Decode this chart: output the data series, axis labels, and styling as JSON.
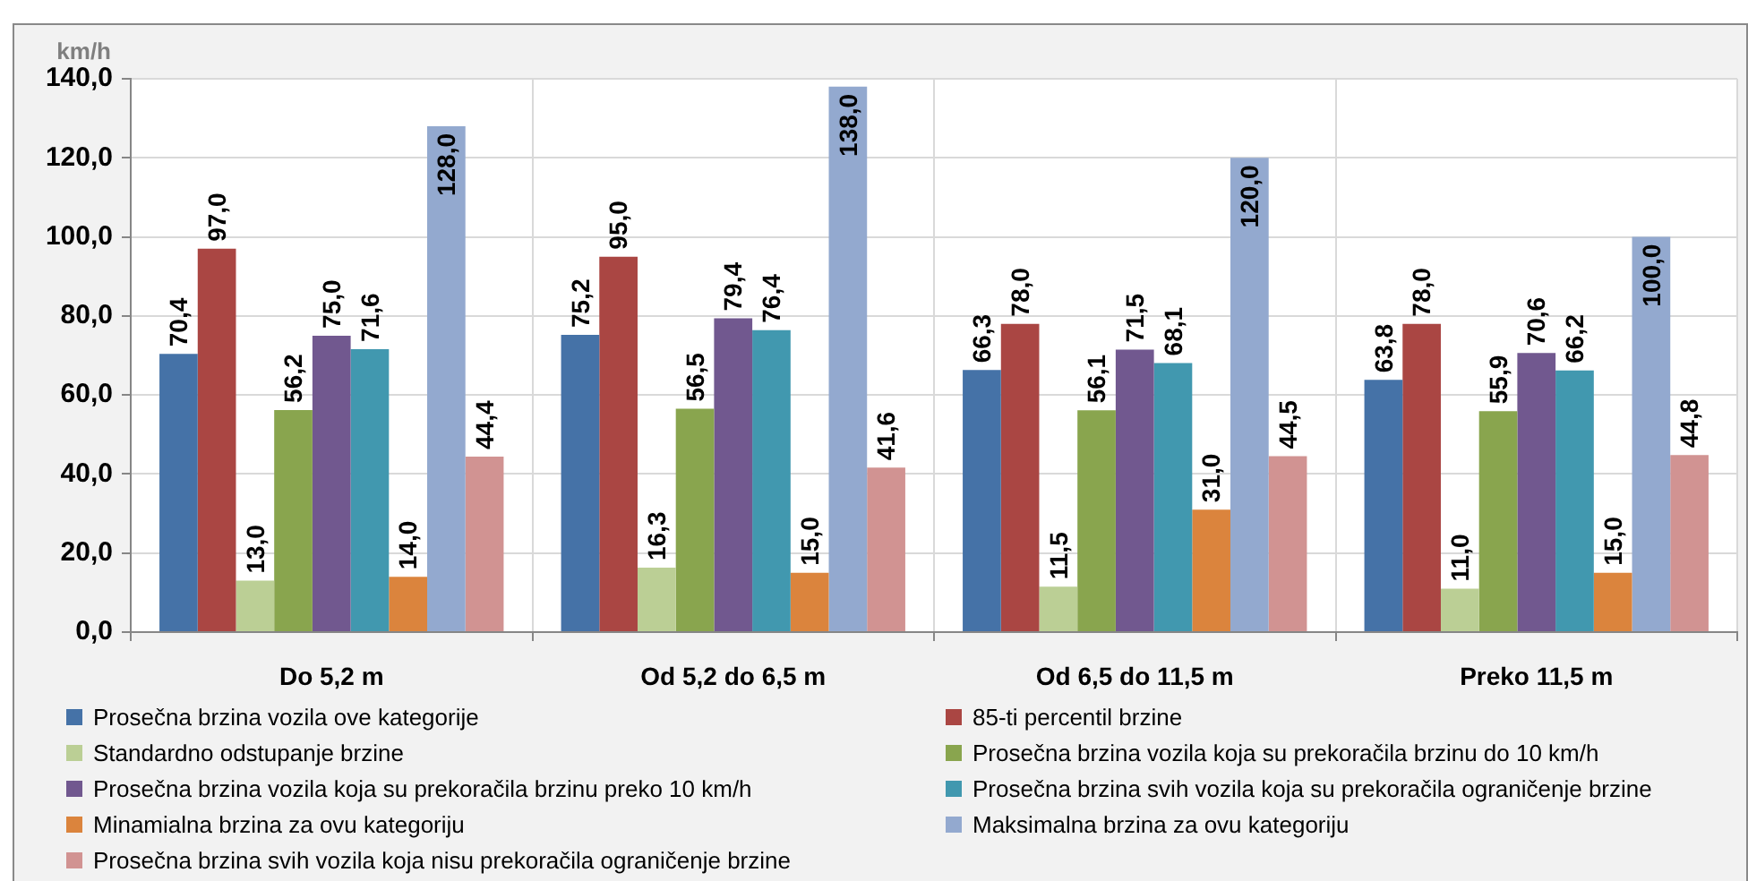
{
  "chart_data": {
    "type": "bar",
    "ylabel": "km/h",
    "categories": [
      "Do 5,2 m",
      "Od 5,2 do 6,5 m",
      "Od 6,5 do 11,5 m",
      "Preko 11,5 m"
    ],
    "series": [
      {
        "name": "Prosečna brzina vozila ove kategorije",
        "color": "#4572a7",
        "values": [
          70.4,
          75.2,
          66.3,
          63.8
        ],
        "value_labels": [
          "70,4",
          "75,2",
          "66,3",
          "63,8"
        ]
      },
      {
        "name": "85-ti percentil brzine",
        "color": "#aa4643",
        "values": [
          97.0,
          95.0,
          78.0,
          78.0
        ],
        "value_labels": [
          "97,0",
          "95,0",
          "78,0",
          "78,0"
        ]
      },
      {
        "name": "Standardno odstupanje brzine",
        "color": "#bbcf95",
        "values": [
          13.0,
          16.3,
          11.5,
          11.0
        ],
        "value_labels": [
          "13,0",
          "16,3",
          "11,5",
          "11,0"
        ]
      },
      {
        "name": "Prosečna brzina vozila koja su prekoračila brzinu do 10 km/h",
        "color": "#89a54e",
        "values": [
          56.2,
          56.5,
          56.1,
          55.9
        ],
        "value_labels": [
          "56,2",
          "56,5",
          "56,1",
          "55,9"
        ]
      },
      {
        "name": "Prosečna brzina vozila koja su prekoračila brzinu preko 10 km/h",
        "color": "#71588f",
        "values": [
          75.0,
          79.4,
          71.5,
          70.6
        ],
        "value_labels": [
          "75,0",
          "79,4",
          "71,5",
          "70,6"
        ]
      },
      {
        "name": "Prosečna brzina svih vozila koja su prekoračila ograničenje brzine",
        "color": "#4198af",
        "values": [
          71.6,
          76.4,
          68.1,
          66.2
        ],
        "value_labels": [
          "71,6",
          "76,4",
          "68,1",
          "66,2"
        ]
      },
      {
        "name": "Minamialna brzina za ovu kategoriju",
        "color": "#db843d",
        "values": [
          14.0,
          15.0,
          31.0,
          15.0
        ],
        "value_labels": [
          "14,0",
          "15,0",
          "31,0",
          "15,0"
        ]
      },
      {
        "name": "Maksimalna brzina za ovu kategoriju",
        "color": "#93a9cf",
        "values": [
          128.0,
          138.0,
          120.0,
          100.0
        ],
        "value_labels": [
          "128,0",
          "138,0",
          "120,0",
          "100,0"
        ]
      },
      {
        "name": "Prosečna brzina svih vozila koja nisu prekoračila ograničenje brzine",
        "color": "#d19392",
        "values": [
          44.4,
          41.6,
          44.5,
          44.8
        ],
        "value_labels": [
          "44,4",
          "41,6",
          "44,5",
          "44,8"
        ]
      }
    ],
    "ylim": [
      0,
      140
    ],
    "yticks": [
      {
        "value": 0,
        "label": "0,0"
      },
      {
        "value": 20,
        "label": "20,0"
      },
      {
        "value": 40,
        "label": "40,0"
      },
      {
        "value": 60,
        "label": "60,0"
      },
      {
        "value": 80,
        "label": "80,0"
      },
      {
        "value": 100,
        "label": "100,0"
      },
      {
        "value": 120,
        "label": "120,0"
      },
      {
        "value": 140,
        "label": "140,0"
      }
    ],
    "grid": true,
    "legend": "bottom"
  }
}
